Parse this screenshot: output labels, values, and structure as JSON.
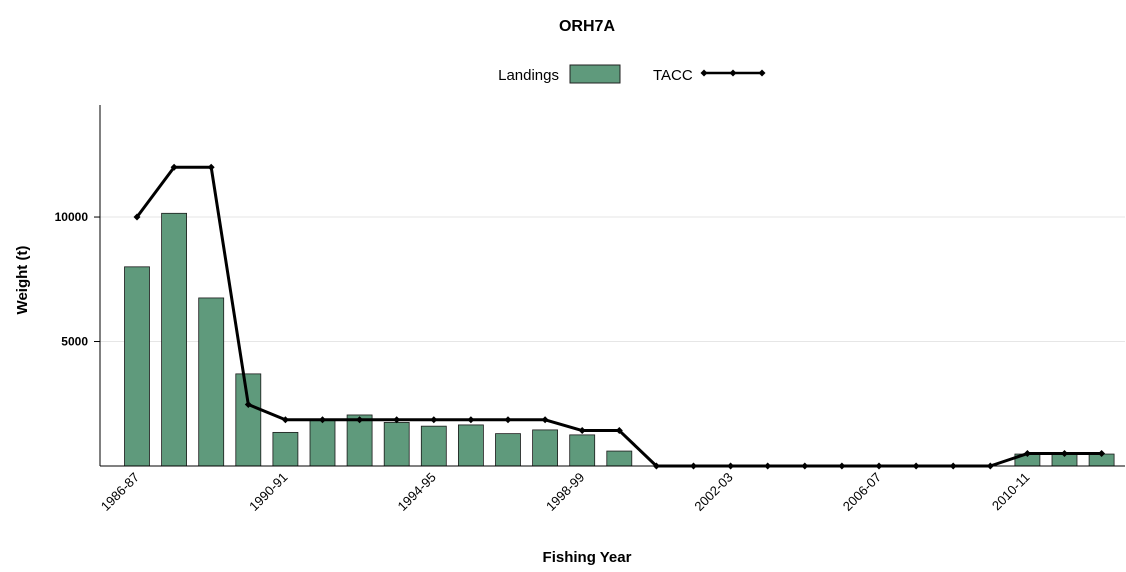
{
  "chart_data": {
    "type": "bar",
    "title": "ORH7A",
    "xlabel": "Fishing Year",
    "ylabel": "Weight (t)",
    "ylim": [
      0,
      14500
    ],
    "yticks": [
      5000,
      10000
    ],
    "grid": true,
    "legend_position": "top",
    "categories": [
      "1986-87",
      "1987-88",
      "1988-89",
      "1989-90",
      "1990-91",
      "1991-92",
      "1992-93",
      "1993-94",
      "1994-95",
      "1995-96",
      "1996-97",
      "1997-98",
      "1998-99",
      "1999-00",
      "2000-01",
      "2001-02",
      "2002-03",
      "2003-04",
      "2004-05",
      "2005-06",
      "2006-07",
      "2007-08",
      "2008-09",
      "2009-10",
      "2010-11",
      "2011-12",
      "2012-13"
    ],
    "tick_labels": [
      "1986-87",
      "1990-91",
      "1994-95",
      "1998-99",
      "2002-03",
      "2006-07",
      "2010-11"
    ],
    "series": [
      {
        "name": "Landings",
        "kind": "bar",
        "color": "#5f9a7c",
        "values": [
          8000,
          10150,
          6750,
          3700,
          1350,
          1850,
          2050,
          1750,
          1600,
          1650,
          1300,
          1450,
          1250,
          600,
          0,
          0,
          0,
          0,
          0,
          0,
          0,
          0,
          0,
          0,
          480,
          480,
          480
        ]
      },
      {
        "name": "TACC",
        "kind": "line",
        "color": "#000000",
        "values": [
          10000,
          12000,
          12000,
          2470,
          1857,
          1857,
          1857,
          1857,
          1857,
          1857,
          1857,
          1857,
          1425,
          1425,
          0,
          0,
          0,
          0,
          0,
          0,
          0,
          0,
          0,
          0,
          500,
          500,
          500
        ]
      }
    ]
  }
}
